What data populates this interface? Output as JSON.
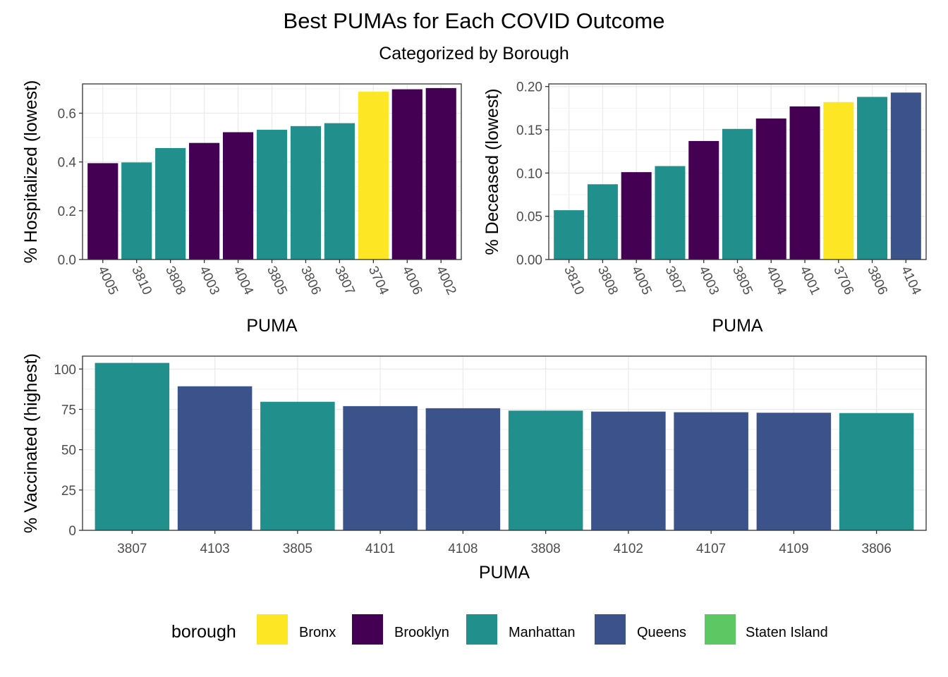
{
  "figure": {
    "title": "Best PUMAs for Each COVID Outcome",
    "subtitle": "Categorized by Borough"
  },
  "colors": {
    "Bronx": "#FDE725",
    "Brooklyn": "#440154",
    "Manhattan": "#21908C",
    "Queens": "#3B528B",
    "Staten Island": "#5DC863"
  },
  "legend": {
    "title": "borough",
    "entries": [
      "Bronx",
      "Brooklyn",
      "Manhattan",
      "Queens",
      "Staten Island"
    ]
  },
  "chart_data": [
    {
      "type": "bar",
      "xlabel": "PUMA",
      "ylabel": "% Hospitalized (lowest)",
      "ylim": [
        0,
        0.72
      ],
      "yticks": [
        0.0,
        0.2,
        0.4,
        0.6
      ],
      "ytick_labels": [
        "0.0",
        "0.2",
        "0.4",
        "0.6"
      ],
      "categories": [
        "4005",
        "3810",
        "3808",
        "4003",
        "4004",
        "3805",
        "3806",
        "3807",
        "3704",
        "4006",
        "4002"
      ],
      "values": [
        0.395,
        0.398,
        0.457,
        0.478,
        0.522,
        0.532,
        0.547,
        0.559,
        0.688,
        0.698,
        0.703
      ],
      "borough": [
        "Brooklyn",
        "Manhattan",
        "Manhattan",
        "Brooklyn",
        "Brooklyn",
        "Manhattan",
        "Manhattan",
        "Manhattan",
        "Bronx",
        "Brooklyn",
        "Brooklyn"
      ],
      "grid": true
    },
    {
      "type": "bar",
      "xlabel": "PUMA",
      "ylabel": "% Deceased (lowest)",
      "ylim": [
        0,
        0.203
      ],
      "yticks": [
        0.0,
        0.05,
        0.1,
        0.15,
        0.2
      ],
      "ytick_labels": [
        "0.00",
        "0.05",
        "0.10",
        "0.15",
        "0.20"
      ],
      "categories": [
        "3810",
        "3808",
        "4005",
        "3807",
        "4003",
        "3805",
        "4004",
        "4001",
        "3706",
        "3806",
        "4104"
      ],
      "values": [
        0.057,
        0.087,
        0.101,
        0.108,
        0.137,
        0.151,
        0.163,
        0.177,
        0.182,
        0.188,
        0.193
      ],
      "borough": [
        "Manhattan",
        "Manhattan",
        "Brooklyn",
        "Manhattan",
        "Brooklyn",
        "Manhattan",
        "Brooklyn",
        "Brooklyn",
        "Bronx",
        "Manhattan",
        "Queens"
      ],
      "grid": true
    },
    {
      "type": "bar",
      "xlabel": "PUMA",
      "ylabel": "% Vaccinated (highest)",
      "ylim": [
        0,
        108
      ],
      "yticks": [
        0,
        25,
        50,
        75,
        100
      ],
      "ytick_labels": [
        "0",
        "25",
        "50",
        "75",
        "100"
      ],
      "categories": [
        "3807",
        "4103",
        "3805",
        "4101",
        "4108",
        "3808",
        "4102",
        "4107",
        "4109",
        "3806"
      ],
      "values": [
        103.8,
        89.3,
        79.7,
        77.0,
        75.7,
        74.2,
        73.6,
        73.2,
        72.9,
        72.7
      ],
      "borough": [
        "Manhattan",
        "Queens",
        "Manhattan",
        "Queens",
        "Queens",
        "Manhattan",
        "Queens",
        "Queens",
        "Queens",
        "Manhattan"
      ],
      "grid": true
    }
  ]
}
